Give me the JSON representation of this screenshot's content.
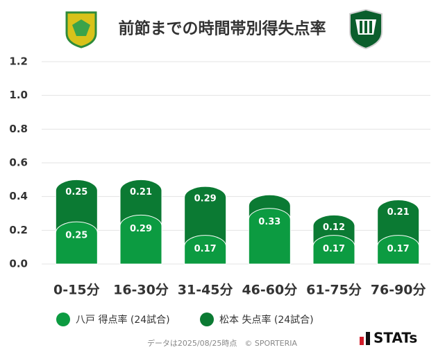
{
  "chart_data": {
    "type": "stacked_bar",
    "title": "前節までの時間帯別得失点率",
    "categories": [
      "0-15分",
      "16-30分",
      "31-45分",
      "46-60分",
      "61-75分",
      "76-90分"
    ],
    "series": [
      {
        "name": "八戸 得点率 (24試合)",
        "color": "#0c9b41",
        "values": [
          0.25,
          0.29,
          0.17,
          0.33,
          0.17,
          0.17
        ]
      },
      {
        "name": "松本 失点率 (24試合)",
        "color": "#0b7a33",
        "values": [
          0.25,
          0.21,
          0.29,
          0.08,
          0.12,
          0.21
        ],
        "value_labels": [
          "0.25",
          "0.21",
          "0.29",
          null,
          "0.12",
          "0.21"
        ]
      }
    ],
    "ylim": [
      0,
      1.2
    ],
    "yticks": [
      {
        "value": 0,
        "label": "0.0"
      },
      0.2,
      0.4,
      0.6,
      0.8,
      {
        "value": 1,
        "label": "1.0"
      },
      1.2
    ],
    "grid": true,
    "footer": "データは2025/08/25時点　© SPORTERIA",
    "brand": "STATs"
  }
}
